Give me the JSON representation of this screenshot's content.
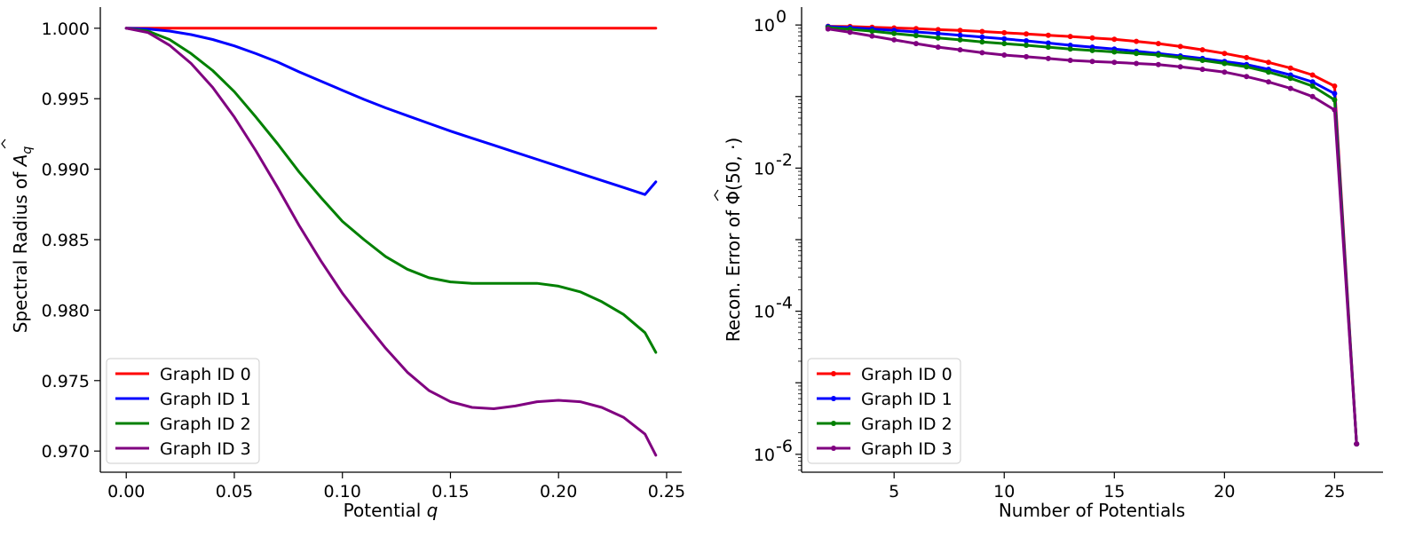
{
  "chart_data": [
    {
      "type": "line",
      "xlabel_main": "Potential ",
      "xlabel_var": "q",
      "ylabel_main": "Spectral Radius of ",
      "ylabel_var": "A",
      "ylabel_sub": "q",
      "xlim": [
        -0.012,
        0.257
      ],
      "ylim": [
        0.9685,
        1.0015
      ],
      "xticks": [
        0.0,
        0.05,
        0.1,
        0.15,
        0.2,
        0.25
      ],
      "xtick_labels": [
        "0.00",
        "0.05",
        "0.10",
        "0.15",
        "0.20",
        "0.25"
      ],
      "yticks": [
        0.97,
        0.975,
        0.98,
        0.985,
        0.99,
        0.995,
        1.0
      ],
      "ytick_labels": [
        "0.970",
        "0.975",
        "0.980",
        "0.985",
        "0.990",
        "0.995",
        "1.000"
      ],
      "legend_position": "lower-left",
      "x": [
        0.0,
        0.01,
        0.02,
        0.03,
        0.04,
        0.05,
        0.06,
        0.07,
        0.08,
        0.09,
        0.1,
        0.11,
        0.12,
        0.13,
        0.14,
        0.15,
        0.16,
        0.17,
        0.18,
        0.19,
        0.2,
        0.21,
        0.22,
        0.23,
        0.24,
        0.245
      ],
      "series": [
        {
          "name": "Graph ID 0",
          "color": "#ff0000",
          "values": [
            1.0,
            1.0,
            1.0,
            1.0,
            1.0,
            1.0,
            1.0,
            1.0,
            1.0,
            1.0,
            1.0,
            1.0,
            1.0,
            1.0,
            1.0,
            1.0,
            1.0,
            1.0,
            1.0,
            1.0,
            1.0,
            1.0,
            1.0,
            1.0,
            1.0,
            1.0
          ]
        },
        {
          "name": "Graph ID 1",
          "color": "#0000ff",
          "values": [
            1.0,
            0.99995,
            0.9998,
            0.99955,
            0.9992,
            0.99875,
            0.9982,
            0.9976,
            0.9969,
            0.99625,
            0.9956,
            0.99495,
            0.99435,
            0.9938,
            0.99325,
            0.9927,
            0.9922,
            0.9917,
            0.9912,
            0.9907,
            0.9902,
            0.9897,
            0.9892,
            0.9887,
            0.9882,
            0.9891
          ]
        },
        {
          "name": "Graph ID 2",
          "color": "#008000",
          "values": [
            1.0,
            0.9998,
            0.9992,
            0.9982,
            0.997,
            0.9955,
            0.9937,
            0.9918,
            0.9898,
            0.988,
            0.9863,
            0.985,
            0.9838,
            0.9829,
            0.9823,
            0.982,
            0.9819,
            0.9819,
            0.9819,
            0.9819,
            0.9817,
            0.9813,
            0.9806,
            0.9797,
            0.9784,
            0.977
          ]
        },
        {
          "name": "Graph ID 3",
          "color": "#800080",
          "values": [
            1.0,
            0.9997,
            0.9988,
            0.9975,
            0.9958,
            0.9937,
            0.9913,
            0.9887,
            0.986,
            0.9835,
            0.9812,
            0.9792,
            0.9773,
            0.9756,
            0.9743,
            0.9735,
            0.9731,
            0.973,
            0.9732,
            0.9735,
            0.9736,
            0.9735,
            0.9731,
            0.9724,
            0.9712,
            0.9697
          ]
        }
      ]
    },
    {
      "type": "line",
      "scale": "log",
      "xlabel": "Number of Potentials",
      "ylabel_main": "Recon. Error of ",
      "ylabel_sym": "Φ",
      "ylabel_args": "(50, ·)",
      "xlim": [
        0.8,
        27.2
      ],
      "ylim_log10": [
        -6.25,
        0.25
      ],
      "xticks": [
        5,
        10,
        15,
        20,
        25
      ],
      "xtick_labels": [
        "5",
        "10",
        "15",
        "20",
        "25"
      ],
      "yticks_log10": [
        0,
        -2,
        -4,
        -6
      ],
      "ytick_bases": [
        "10",
        "10",
        "10",
        "10"
      ],
      "ytick_exps": [
        "0",
        "-2",
        "-4",
        "-6"
      ],
      "legend_position": "lower-left",
      "x": [
        2,
        3,
        4,
        5,
        6,
        7,
        8,
        9,
        10,
        11,
        12,
        13,
        14,
        15,
        16,
        17,
        18,
        19,
        20,
        21,
        22,
        23,
        24,
        25,
        26
      ],
      "series": [
        {
          "name": "Graph ID 0",
          "color": "#ff0000",
          "values": [
            0.96,
            0.95,
            0.93,
            0.91,
            0.89,
            0.86,
            0.84,
            0.81,
            0.78,
            0.75,
            0.72,
            0.69,
            0.66,
            0.63,
            0.59,
            0.55,
            0.5,
            0.45,
            0.4,
            0.35,
            0.3,
            0.25,
            0.2,
            0.14,
            1.4e-06
          ]
        },
        {
          "name": "Graph ID 1",
          "color": "#0000ff",
          "values": [
            0.95,
            0.92,
            0.88,
            0.84,
            0.8,
            0.76,
            0.72,
            0.68,
            0.64,
            0.6,
            0.56,
            0.52,
            0.49,
            0.46,
            0.43,
            0.4,
            0.37,
            0.34,
            0.31,
            0.28,
            0.24,
            0.2,
            0.16,
            0.11,
            1.4e-06
          ]
        },
        {
          "name": "Graph ID 2",
          "color": "#008000",
          "values": [
            0.92,
            0.87,
            0.82,
            0.76,
            0.71,
            0.66,
            0.62,
            0.58,
            0.55,
            0.52,
            0.49,
            0.46,
            0.44,
            0.42,
            0.4,
            0.38,
            0.35,
            0.32,
            0.29,
            0.26,
            0.22,
            0.18,
            0.14,
            0.09,
            1.4e-06
          ]
        },
        {
          "name": "Graph ID 3",
          "color": "#800080",
          "values": [
            0.88,
            0.79,
            0.7,
            0.62,
            0.55,
            0.49,
            0.45,
            0.41,
            0.38,
            0.36,
            0.34,
            0.32,
            0.31,
            0.3,
            0.29,
            0.28,
            0.26,
            0.24,
            0.22,
            0.19,
            0.16,
            0.13,
            0.1,
            0.065,
            1.4e-06
          ]
        }
      ]
    }
  ]
}
